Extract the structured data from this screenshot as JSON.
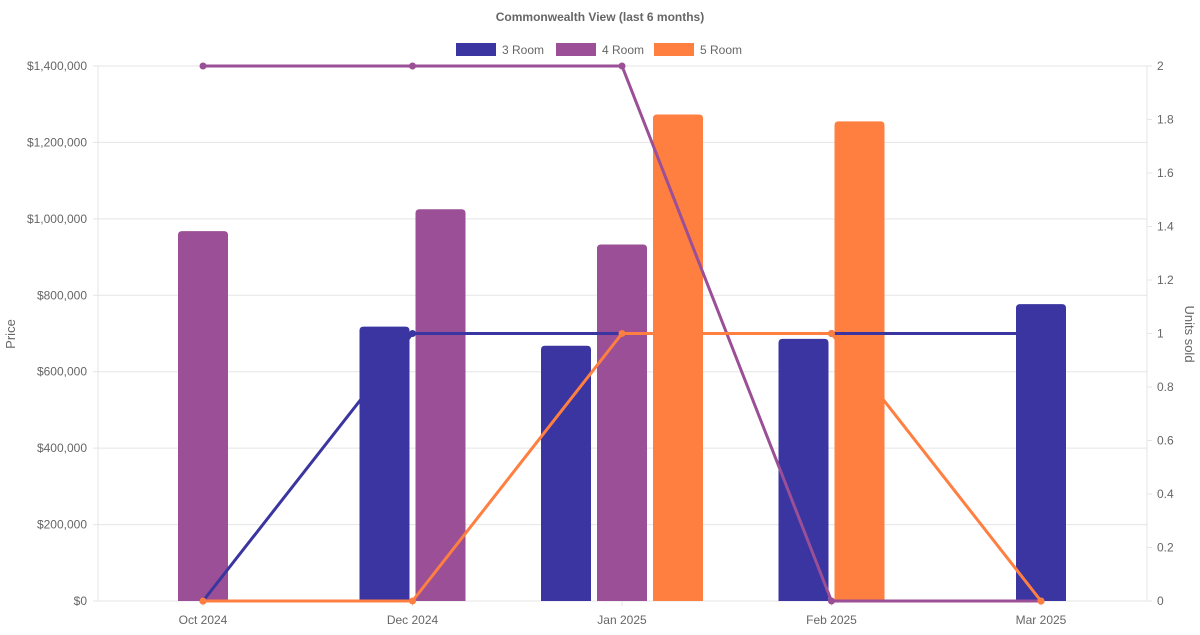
{
  "chart_data": {
    "type": "bar+line",
    "title": "Commonwealth View (last 6 months)",
    "categories": [
      "Oct 2024",
      "Dec 2024",
      "Jan 2025",
      "Feb 2025",
      "Mar 2025"
    ],
    "ylabel": "Price",
    "y2label": "Units sold",
    "ylim": [
      0,
      1400000
    ],
    "y2lim": [
      0,
      2
    ],
    "yticks": [
      0,
      200000,
      400000,
      600000,
      800000,
      1000000,
      1200000,
      1400000
    ],
    "ytick_labels": [
      "$0",
      "$200,000",
      "$400,000",
      "$600,000",
      "$800,000",
      "$1,000,000",
      "$1,200,000",
      "$1,400,000"
    ],
    "y2ticks": [
      0,
      0.2,
      0.4,
      0.6,
      0.8,
      1,
      1.2,
      1.4,
      1.6,
      1.8,
      2
    ],
    "y2tick_labels": [
      "0",
      "0.2",
      "0.4",
      "0.6",
      "0.8",
      "1",
      "1.2",
      "1.4",
      "1.6",
      "1.8",
      "2"
    ],
    "legend_position": "top-center",
    "grid": true,
    "series": [
      {
        "name": "3 Room",
        "color": "#3a35a0",
        "price": [
          null,
          718000,
          668000,
          686000,
          777000
        ],
        "units": [
          0,
          1,
          1,
          1,
          1
        ]
      },
      {
        "name": "4 Room",
        "color": "#9b4f96",
        "price": [
          968000,
          1025000,
          933000,
          null,
          null
        ],
        "units": [
          2,
          2,
          2,
          0,
          0
        ]
      },
      {
        "name": "5 Room",
        "color": "#ff7f41",
        "price": [
          null,
          null,
          1273000,
          1255000,
          null
        ],
        "units": [
          0,
          0,
          1,
          1,
          0
        ]
      }
    ]
  }
}
